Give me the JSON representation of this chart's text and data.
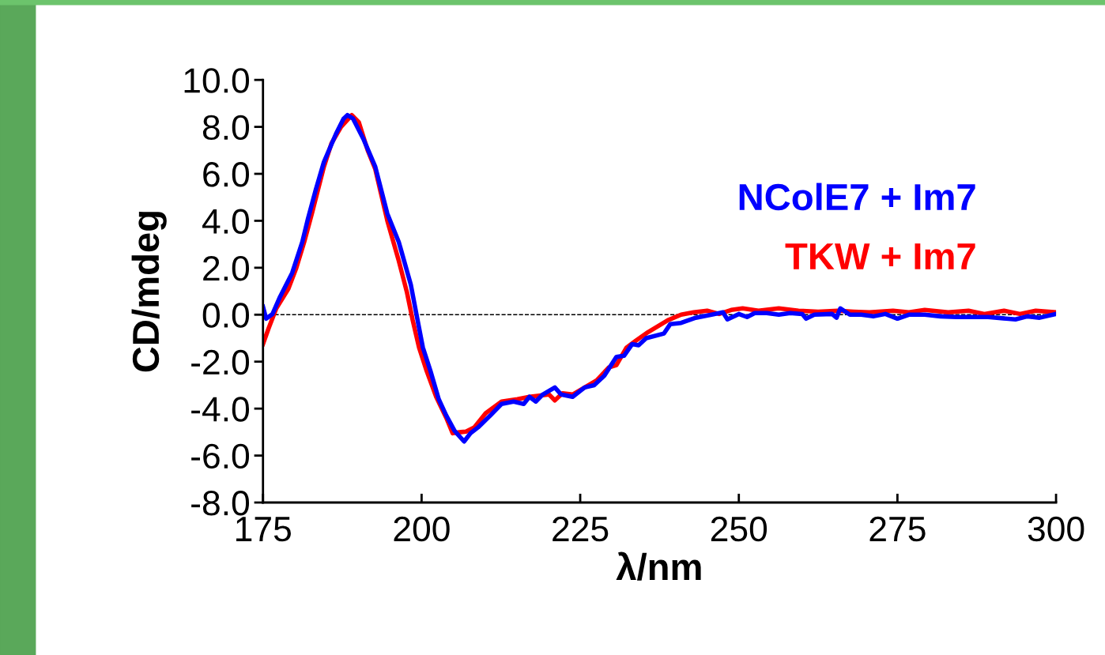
{
  "chart_data": {
    "type": "line",
    "xlabel": "λ/nm",
    "ylabel": "CD/mdeg",
    "xlim": [
      175,
      300
    ],
    "xticks": [
      175,
      200,
      225,
      250,
      275,
      300
    ],
    "ylim": [
      -8,
      10
    ],
    "yticks": [
      {
        "value": -8,
        "label": "-8.0"
      },
      {
        "value": -6,
        "label": "-6.0"
      },
      {
        "value": -4,
        "label": "-4.0"
      },
      {
        "value": -2,
        "label": "-2.0"
      },
      {
        "value": 0,
        "label": "0.0"
      },
      {
        "value": 2,
        "label": "2.0"
      },
      {
        "value": 4,
        "label": "4.0"
      },
      {
        "value": 6,
        "label": "6.0"
      },
      {
        "value": 8,
        "label": "8.0"
      },
      {
        "value": 10,
        "label": "10.0"
      }
    ],
    "grid": false,
    "line_style": "solid",
    "marker": "none",
    "ref_lines": [
      {
        "axis": "y",
        "value": 0,
        "color": "#000000",
        "line_style": "dashed"
      }
    ],
    "series": [
      {
        "name": "TKW + Im7",
        "color": "#ff0000",
        "x": [
          175,
          175.9,
          177.1,
          179,
          180.2,
          181.5,
          182.7,
          184.6,
          185.8,
          187.3,
          189,
          190.1,
          191.5,
          192.7,
          194.6,
          196.4,
          197.7,
          198.6,
          199.6,
          200.8,
          202.3,
          203.9,
          204.9,
          206.2,
          207,
          208.3,
          210.1,
          212.6,
          215.1,
          217,
          220.1,
          221,
          222.2,
          223.8,
          225.7,
          227.6,
          229.5,
          230.7,
          232.3,
          233.8,
          235.7,
          238.8,
          240.9,
          242.9,
          245,
          246.9,
          248.8,
          250.6,
          253.1,
          256.3,
          259.4,
          262.5,
          265.6,
          268.1,
          270.6,
          274.3,
          276.8,
          279.3,
          283,
          286.2,
          288.7,
          291.8,
          294.3,
          296.8,
          300
        ],
        "values": [
          -1.25,
          -0.57,
          0.27,
          1.1,
          1.95,
          3.1,
          4.3,
          6.3,
          7.3,
          8.0,
          8.5,
          8.2,
          7.0,
          6.2,
          4.0,
          2.3,
          0.94,
          -0.24,
          -1.4,
          -2.4,
          -3.5,
          -4.4,
          -5.05,
          -5.0,
          -4.98,
          -4.8,
          -4.2,
          -3.7,
          -3.6,
          -3.5,
          -3.4,
          -3.65,
          -3.35,
          -3.4,
          -3.1,
          -2.8,
          -2.25,
          -2.15,
          -1.4,
          -1.1,
          -0.74,
          -0.24,
          0,
          0.1,
          0.17,
          0.03,
          0.2,
          0.27,
          0.17,
          0.27,
          0.17,
          0.13,
          0.17,
          0.13,
          0.1,
          0.17,
          0.1,
          0.2,
          0.1,
          0.17,
          0.03,
          0.17,
          0.03,
          0.17,
          0.1
        ]
      },
      {
        "name": "NColE7 + Im7",
        "color": "#0000ff",
        "x": [
          175,
          175.5,
          176.5,
          177.7,
          179.6,
          181.2,
          182.1,
          183.3,
          184.6,
          186.5,
          187.7,
          188.3,
          189.2,
          190.8,
          192.7,
          194.6,
          196.4,
          198.3,
          199.2,
          200.2,
          201.4,
          202.7,
          203.9,
          205.2,
          206.7,
          207.7,
          208.9,
          210.8,
          212.6,
          214.5,
          216.1,
          217,
          218,
          219.1,
          221,
          222,
          223.8,
          225.7,
          227.2,
          228.8,
          230.7,
          231.9,
          233.2,
          234.2,
          235.4,
          238.2,
          239.2,
          240.9,
          243.2,
          245.7,
          247.5,
          248.2,
          250,
          251.3,
          252.5,
          254.4,
          256.3,
          258.1,
          260,
          260.6,
          261.9,
          264.7,
          265.4,
          266,
          267.5,
          269.3,
          271.2,
          273.1,
          275,
          276.8,
          279.3,
          281.8,
          284.3,
          289.3,
          293.6,
          295.5,
          297.4,
          300
        ],
        "values": [
          0.34,
          -0.17,
          0.03,
          0.77,
          1.78,
          3.1,
          4.1,
          5.3,
          6.5,
          7.7,
          8.35,
          8.5,
          8.35,
          7.5,
          6.3,
          4.3,
          3.1,
          1.28,
          0,
          -1.4,
          -2.4,
          -3.6,
          -4.3,
          -4.95,
          -5.4,
          -5.05,
          -4.8,
          -4.3,
          -3.8,
          -3.7,
          -3.8,
          -3.5,
          -3.7,
          -3.4,
          -3.1,
          -3.4,
          -3.5,
          -3.1,
          -3.0,
          -2.6,
          -1.8,
          -1.75,
          -1.25,
          -1.3,
          -1.0,
          -0.8,
          -0.4,
          -0.35,
          -0.13,
          0,
          0.1,
          -0.2,
          0.03,
          -0.1,
          0.07,
          0.07,
          0,
          0.07,
          0.03,
          -0.17,
          0,
          0.03,
          -0.13,
          0.27,
          0,
          0,
          -0.07,
          0.03,
          -0.17,
          0,
          0,
          -0.07,
          -0.1,
          -0.1,
          -0.2,
          -0.07,
          -0.13,
          0.03
        ]
      }
    ]
  }
}
